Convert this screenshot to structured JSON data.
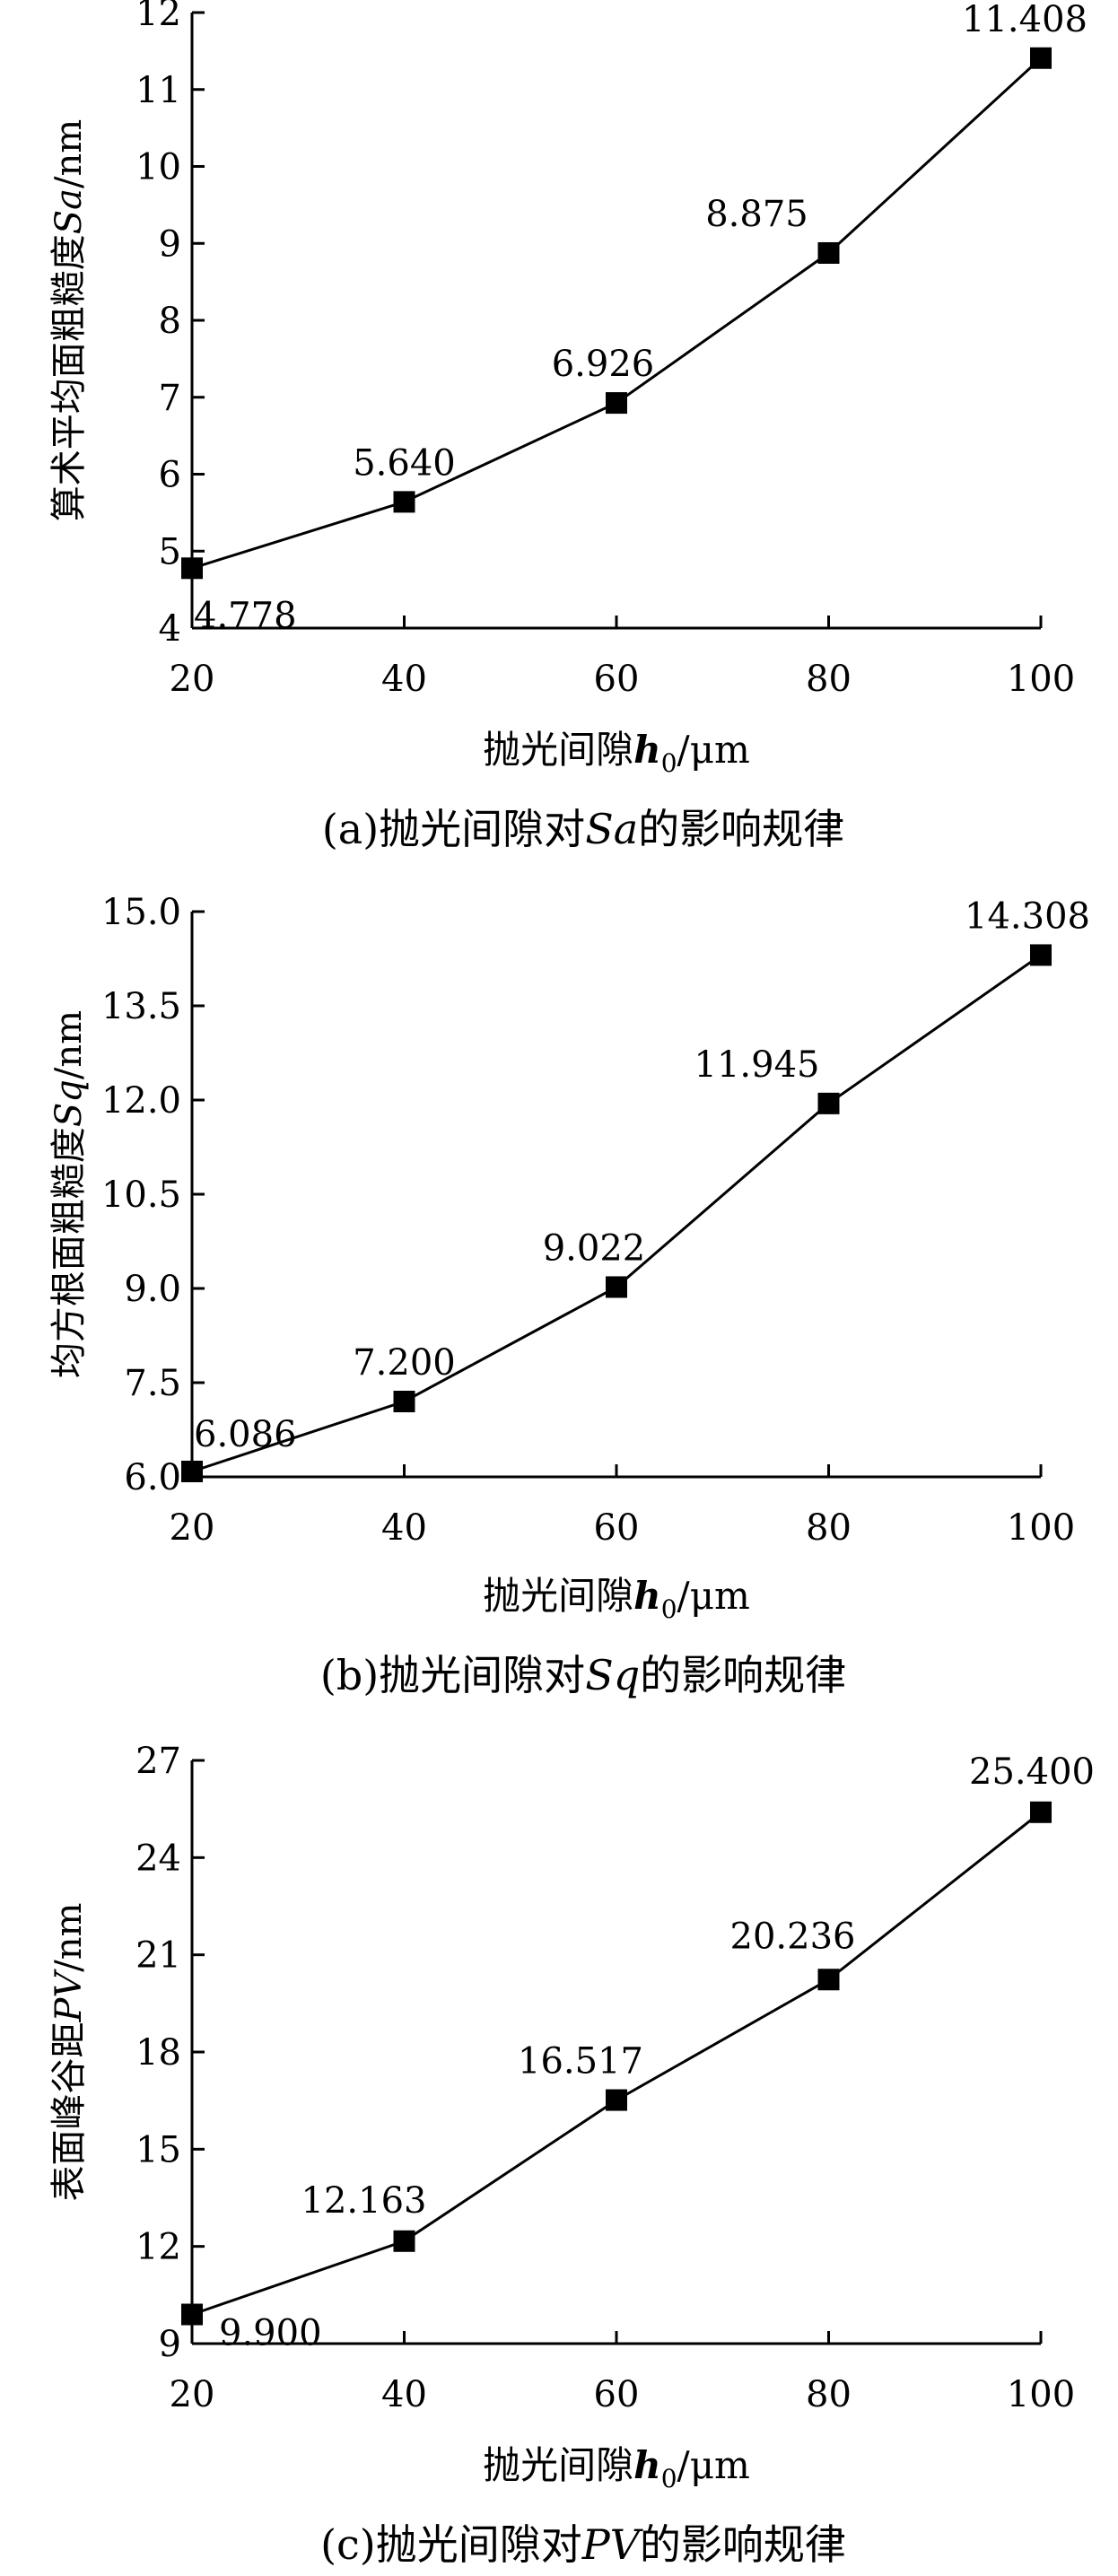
{
  "chart_data": [
    {
      "type": "line",
      "x": [
        20,
        40,
        60,
        80,
        100
      ],
      "values": [
        4.778,
        5.64,
        6.926,
        8.875,
        11.408
      ],
      "data_labels": [
        "4.778",
        "5.640",
        "6.926",
        "8.875",
        "11.408"
      ],
      "xlim": [
        20,
        100
      ],
      "xticks": [
        20,
        40,
        60,
        80,
        100
      ],
      "ylim": [
        4,
        12
      ],
      "yticks": [
        "4",
        "5",
        "6",
        "7",
        "8",
        "9",
        "10",
        "11",
        "12"
      ],
      "xlabel": {
        "prefix": "抛光间隙",
        "var": "h",
        "sub": "0",
        "unit": "/μm"
      },
      "ylabel": {
        "prefix": "算术平均面粗糙度",
        "var": "Sa",
        "unit": "/nm"
      },
      "caption": {
        "prefix": "(a)抛光间隙对",
        "var": "Sa",
        "suffix": "的影响规律"
      },
      "grid": false,
      "marker": "square",
      "color": "#000000"
    },
    {
      "type": "line",
      "x": [
        20,
        40,
        60,
        80,
        100
      ],
      "values": [
        6.086,
        7.2,
        9.022,
        11.945,
        14.308
      ],
      "data_labels": [
        "6.086",
        "7.200",
        "9.022",
        "11.945",
        "14.308"
      ],
      "xlim": [
        20,
        100
      ],
      "xticks": [
        20,
        40,
        60,
        80,
        100
      ],
      "ylim": [
        6,
        15
      ],
      "yticks": [
        "6.0",
        "7.5",
        "9.0",
        "10.5",
        "12.0",
        "13.5",
        "15.0"
      ],
      "xlabel": {
        "prefix": "抛光间隙",
        "var": "h",
        "sub": "0",
        "unit": "/μm"
      },
      "ylabel": {
        "prefix": "均方根面粗糙度",
        "var": "Sq",
        "unit": "/nm"
      },
      "caption": {
        "prefix": "(b)抛光间隙对",
        "var": "Sq",
        "suffix": "的影响规律"
      },
      "grid": false,
      "marker": "square",
      "color": "#000000"
    },
    {
      "type": "line",
      "x": [
        20,
        40,
        60,
        80,
        100
      ],
      "values": [
        9.9,
        12.163,
        16.517,
        20.236,
        25.4
      ],
      "data_labels": [
        "9.900",
        "12.163",
        "16.517",
        "20.236",
        "25.400"
      ],
      "xlim": [
        20,
        100
      ],
      "xticks": [
        20,
        40,
        60,
        80,
        100
      ],
      "ylim": [
        9,
        27
      ],
      "yticks": [
        "9",
        "12",
        "15",
        "18",
        "21",
        "24",
        "27"
      ],
      "xlabel": {
        "prefix": "抛光间隙",
        "var": "h",
        "sub": "0",
        "unit": "/μm"
      },
      "ylabel": {
        "prefix": "表面峰谷距",
        "var": "PV",
        "unit": "/nm"
      },
      "caption": {
        "prefix": "(c)抛光间隙对",
        "var": "PV",
        "suffix": "的影响规律"
      },
      "grid": false,
      "marker": "square",
      "color": "#000000"
    }
  ]
}
